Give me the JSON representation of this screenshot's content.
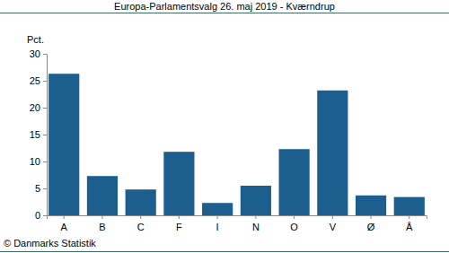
{
  "chart_data": {
    "type": "bar",
    "title": "Europa-Parlamentsvalg 26. maj 2019 - Kværndrup",
    "ylabel": "Pct.",
    "source": "© Danmarks Statistik",
    "categories": [
      "A",
      "B",
      "C",
      "F",
      "I",
      "N",
      "O",
      "V",
      "Ø",
      "Å"
    ],
    "values": [
      26.3,
      7.3,
      4.8,
      11.8,
      2.3,
      5.5,
      12.3,
      23.2,
      3.7,
      3.4
    ],
    "color": "#1c5f8e",
    "ylim": [
      0,
      30
    ],
    "yticks": [
      0,
      5,
      10,
      15,
      20,
      25,
      30
    ],
    "grid": false
  }
}
